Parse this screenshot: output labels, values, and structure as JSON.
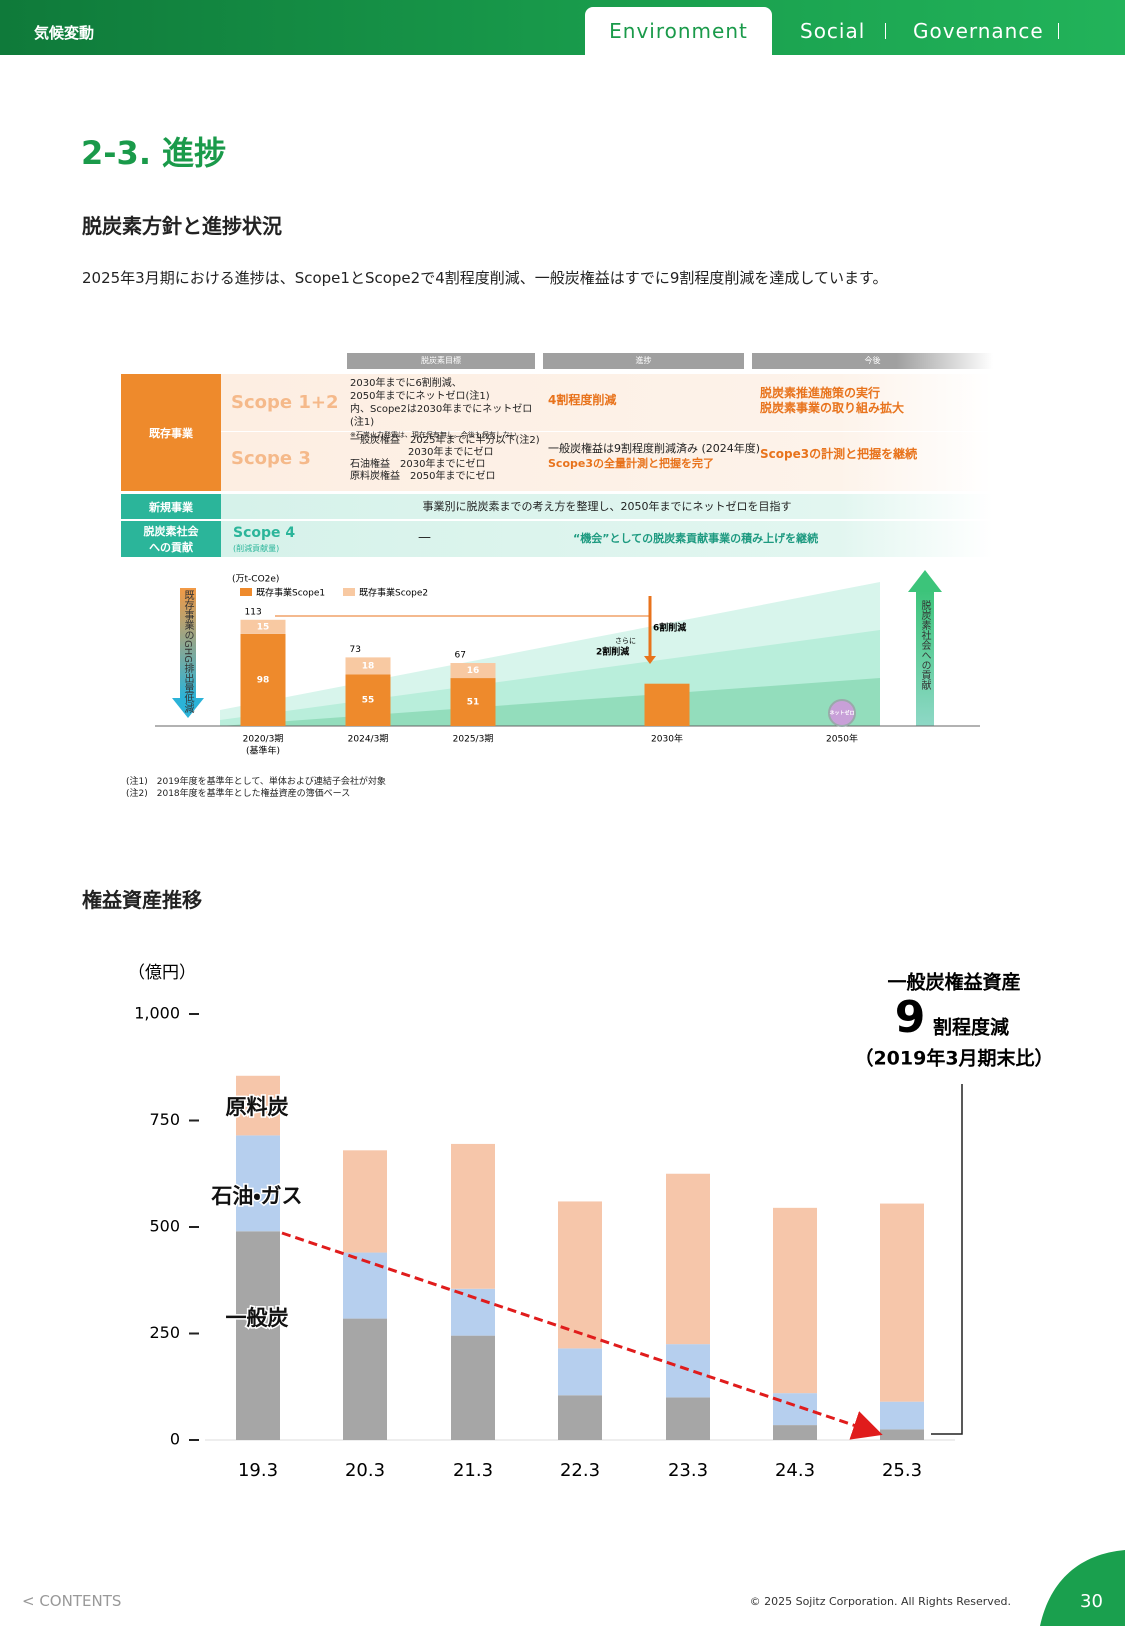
{
  "header": {
    "section": "気候変動",
    "tabs": [
      "Environment",
      "Social",
      "Governance"
    ]
  },
  "title": "2-3. 進捗",
  "section1": {
    "heading": "脱炭素方針と進捗状況",
    "text": "2025年3月期における進捗は、Scope1とScope2で4割程度削減、一般炭権益はすでに9割程度削減を達成しています。"
  },
  "policy_table": {
    "columns": [
      "脱炭素目標",
      "進捗",
      "今後"
    ],
    "existing": {
      "label": "既存事業",
      "scope12": {
        "label": "Scope 1+2",
        "goals": [
          "2030年までに6割削減、",
          "2050年までにネットゼロ(注1)",
          "内、Scope2は2030年までにネットゼロ(注1)",
          "※石炭火力発電は、現在保有無し。今後も保有しない"
        ],
        "progress": "4割程度削減",
        "future": [
          "脱炭素推進施策の実行",
          "脱炭素事業の取り組み拡大"
        ]
      },
      "scope3": {
        "label": "Scope 3",
        "goals": [
          "一般炭権益　2025年までに半分以下(注2)",
          "2030年までにゼロ",
          "石油権益　2030年までにゼロ",
          "原料炭権益　2050年までにゼロ"
        ],
        "progress": [
          "一般炭権益は9割程度削減済み (2024年度)",
          "Scope3の全量計測と把握を完了"
        ],
        "future": "Scope3の計測と把握を継続"
      }
    },
    "new_business": {
      "label": "新規事業",
      "text": "事業別に脱炭素までの考え方を整理し、2050年までにネットゼロを目指す"
    },
    "contribution": {
      "label": "脱炭素社会への貢献",
      "scope": "Scope 4",
      "scope_note": "(削減貢献量)",
      "goal": "—",
      "text": "“機会”としての脱炭素貢献事業の積み上げを継続"
    }
  },
  "notes": [
    "(注1)　2019年度を基準年として、単体および連結子会社が対象",
    "(注2)　2018年度を基準年とした権益資産の簿価ベース"
  ],
  "section2": {
    "heading": "権益資産推移"
  },
  "chart_data": [
    {
      "type": "bar",
      "stacked": true,
      "unit": "(万t-CO2e)",
      "categories": [
        "2020/3期",
        "2024/3期",
        "2025/3期",
        "2030年",
        "2050年"
      ],
      "category_notes": [
        "(基準年)",
        null,
        null,
        null,
        null
      ],
      "series": [
        {
          "name": "既存事業Scope1",
          "color": "#ee8a2c",
          "values": [
            98,
            55,
            51,
            45,
            null
          ]
        },
        {
          "name": "既存事業Scope2",
          "color": "#f8c9a2",
          "values": [
            15,
            18,
            16,
            null,
            null
          ]
        }
      ],
      "totals": [
        113,
        73,
        67,
        null,
        null
      ],
      "annotations": [
        "6割削減",
        "さらに",
        "2割削減"
      ],
      "net_zero_label": "ネットゼロ",
      "left_arrow": "既存事業のGHG排出量低減",
      "right_arrow": "脱炭素社会への貢献"
    },
    {
      "type": "bar",
      "stacked": true,
      "unit": "（億円）",
      "categories": [
        "19.3",
        "20.3",
        "21.3",
        "22.3",
        "23.3",
        "24.3",
        "25.3"
      ],
      "series": [
        {
          "name": "一般炭",
          "color": "#a6a6a6",
          "values": [
            490,
            285,
            245,
            105,
            100,
            35,
            25
          ]
        },
        {
          "name": "石油・ガス",
          "color": "#b6cfee",
          "values": [
            225,
            155,
            110,
            110,
            125,
            75,
            65
          ]
        },
        {
          "name": "原料炭",
          "color": "#f6c6aa",
          "values": [
            140,
            240,
            340,
            345,
            400,
            435,
            465
          ]
        }
      ],
      "ylim": [
        0,
        1000
      ],
      "yticks": [
        0,
        250,
        500,
        750,
        {
          "value": 1000,
          "label": "1,000"
        }
      ],
      "annotation": {
        "title": "一般炭権益資産",
        "number": 9,
        "unit": "割程度減",
        "note": "（2019年3月期末比）"
      }
    }
  ],
  "footer": {
    "contents": "< CONTENTS",
    "copyright": "© 2025 Sojitz Corporation. All Rights Reserved.",
    "page": "30"
  }
}
